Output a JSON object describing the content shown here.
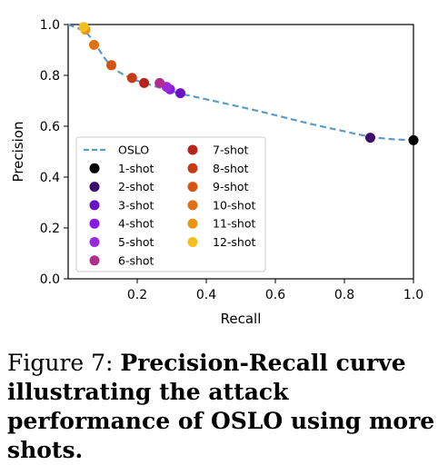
{
  "chart_data": {
    "type": "scatter",
    "xlabel": "Recall",
    "ylabel": "Precision",
    "xlim": [
      0.0,
      1.0
    ],
    "ylim": [
      0.0,
      1.0
    ],
    "xticks": [
      "0.2",
      "0.4",
      "0.6",
      "0.8",
      "1.0"
    ],
    "yticks": [
      "0.0",
      "0.2",
      "0.4",
      "0.6",
      "0.8",
      "1.0"
    ],
    "grid": false,
    "legend_placement": "lower-left",
    "curve": {
      "name": "OSLO",
      "color": "#5b9bc6",
      "style": "dashed",
      "x": [
        0.0,
        0.05,
        0.08,
        0.11,
        0.14,
        0.18,
        0.22,
        0.27,
        0.32,
        0.42,
        0.55,
        0.7,
        0.8,
        0.87,
        0.93,
        1.0
      ],
      "y": [
        1.0,
        0.97,
        0.92,
        0.86,
        0.82,
        0.79,
        0.77,
        0.75,
        0.73,
        0.7,
        0.66,
        0.61,
        0.58,
        0.56,
        0.55,
        0.545
      ]
    },
    "series": [
      {
        "name": "1-shot",
        "color": "#000000",
        "x": 1.0,
        "y": 0.545
      },
      {
        "name": "2-shot",
        "color": "#3d0b6b",
        "x": 0.875,
        "y": 0.555
      },
      {
        "name": "3-shot",
        "color": "#6a12c8",
        "x": 0.325,
        "y": 0.73
      },
      {
        "name": "4-shot",
        "color": "#8a1be6",
        "x": 0.295,
        "y": 0.745
      },
      {
        "name": "5-shot",
        "color": "#9a2ad9",
        "x": 0.285,
        "y": 0.755
      },
      {
        "name": "6-shot",
        "color": "#b02d8f",
        "x": 0.265,
        "y": 0.77
      },
      {
        "name": "7-shot",
        "color": "#b8241c",
        "x": 0.22,
        "y": 0.77
      },
      {
        "name": "8-shot",
        "color": "#c63a14",
        "x": 0.185,
        "y": 0.79
      },
      {
        "name": "9-shot",
        "color": "#d6540f",
        "x": 0.125,
        "y": 0.84
      },
      {
        "name": "10-shot",
        "color": "#e07012",
        "x": 0.075,
        "y": 0.92
      },
      {
        "name": "11-shot",
        "color": "#ea9410",
        "x": 0.05,
        "y": 0.98
      },
      {
        "name": "12-shot",
        "color": "#f3bf1b",
        "x": 0.045,
        "y": 0.99
      }
    ]
  },
  "caption": {
    "prefix": "Figure 7:  ",
    "bold_text": "Precision-Recall curve illustrating the attack performance of OSLO using more shots."
  }
}
